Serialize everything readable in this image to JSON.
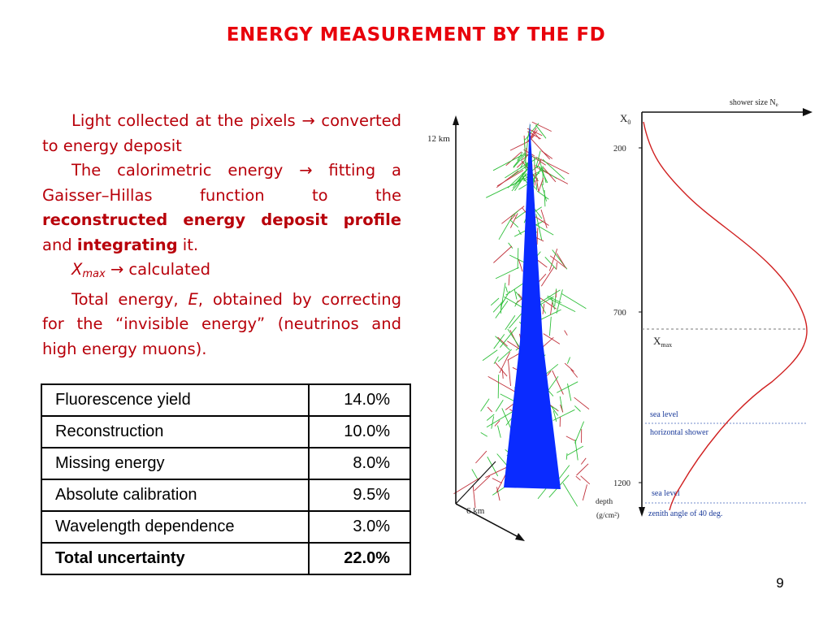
{
  "slide": {
    "title": "ENERGY MEASUREMENT BY THE FD",
    "page_number": "9"
  },
  "paragraphs": {
    "p1": "Light collected at the pixels → converted to energy deposit",
    "p2_a": "The calorimetric energy → fitting a Gaisser–Hillas function to the",
    "p2_b": "reconstructed energy deposit profile",
    "p2_c": "and",
    "p2_d": "integrating",
    "p2_e": "it.",
    "p3_a": "X",
    "p3_sub": "max",
    "p3_b": "→ calculated",
    "p4_a": "Total energy,",
    "p4_e": "E",
    "p4_b": ", obtained by correcting for the “invisible energy” (neutrinos and high energy muons)."
  },
  "uncertainty_table": {
    "rows": [
      {
        "label": "Fluorescence yield",
        "value": "14.0%"
      },
      {
        "label": "Reconstruction",
        "value": "10.0%"
      },
      {
        "label": "Missing energy",
        "value": "8.0%"
      },
      {
        "label": "Absolute calibration",
        "value": "9.5%"
      },
      {
        "label": "Wavelength dependence",
        "value": "3.0%"
      }
    ],
    "total": {
      "label": "Total uncertainty",
      "value": "22.0%"
    }
  },
  "figure": {
    "height_label": "12 km",
    "width_label": "6 km",
    "shower_size_label": "shower size N",
    "shower_size_sub": "e",
    "x0_label": "X",
    "x0_sub": "0",
    "xmax_label": "X",
    "xmax_sub": "max",
    "depth_ticks": [
      "200",
      "700",
      "1200"
    ],
    "depth_label": "depth",
    "depth_unit": "(g/cm²)",
    "sea_level_1": "sea level",
    "horizontal_shower": "horizontal shower",
    "sea_level_2": "sea level",
    "zenith_angle": "zenith angle of 40 deg.",
    "colors": {
      "core": "#0a2bff",
      "green_tracks": "#2fbf3a",
      "red_tracks": "#c0303a",
      "profile_curve": "#d02020"
    }
  }
}
